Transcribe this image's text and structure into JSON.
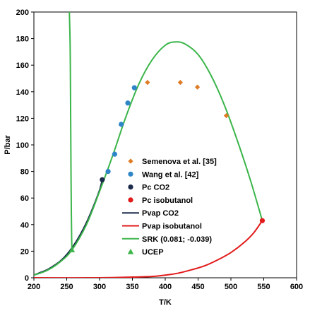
{
  "chart_data": {
    "type": "scatter",
    "title": "",
    "xlabel": "T/K",
    "ylabel": "P/bar",
    "xlim": [
      200,
      600
    ],
    "ylim": [
      0,
      200
    ],
    "x_ticks": [
      "200",
      "250",
      "300",
      "350",
      "400",
      "450",
      "500",
      "550",
      "600"
    ],
    "y_ticks": [
      "0",
      "20",
      "40",
      "60",
      "80",
      "100",
      "120",
      "140",
      "160",
      "180",
      "200"
    ],
    "grid": false,
    "legend_position": "right",
    "colors": {
      "semenova": "#e07b25",
      "wang": "#2e86c8",
      "pc_co2": "#1b2a4a",
      "pc_isobutanol": "#e21a1a",
      "pvap_co2": "#1b2a4a",
      "pvap_isobutanol": "#e21a1a",
      "srk": "#3bb54a",
      "ucep": "#3bb54a"
    },
    "series": [
      {
        "key": "semenova",
        "name": "Semenova et al. [35]",
        "kind": "marker",
        "marker": "diamond",
        "points": [
          [
            373,
            147
          ],
          [
            423,
            147
          ],
          [
            449,
            143.5
          ],
          [
            493,
            122
          ]
        ]
      },
      {
        "key": "wang",
        "name": "Wang et al. [42]",
        "kind": "marker",
        "marker": "circle",
        "points": [
          [
            313,
            80
          ],
          [
            323,
            93
          ],
          [
            333,
            115.5
          ],
          [
            343,
            131.5
          ],
          [
            353,
            143
          ]
        ]
      },
      {
        "key": "pc_co2",
        "name": "Pc CO2",
        "kind": "marker",
        "marker": "circle",
        "points": [
          [
            304.1,
            73.8
          ]
        ]
      },
      {
        "key": "pc_isobutanol",
        "name": "Pc isobutanol",
        "kind": "marker",
        "marker": "circle",
        "points": [
          [
            547.8,
            43
          ]
        ]
      },
      {
        "key": "pvap_co2",
        "name": "Pvap CO2",
        "kind": "line",
        "points": [
          [
            200,
            2
          ],
          [
            210,
            4
          ],
          [
            220,
            6
          ],
          [
            230,
            9
          ],
          [
            240,
            12.5
          ],
          [
            250,
            17.5
          ],
          [
            260,
            24
          ],
          [
            270,
            32
          ],
          [
            280,
            41.5
          ],
          [
            290,
            53
          ],
          [
            300,
            66
          ],
          [
            304.1,
            73.8
          ]
        ]
      },
      {
        "key": "pvap_isobutanol",
        "name": "Pvap isobutanol",
        "kind": "line",
        "points": [
          [
            200,
            0
          ],
          [
            300,
            0
          ],
          [
            350,
            0.5
          ],
          [
            380,
            1
          ],
          [
            400,
            2
          ],
          [
            420,
            3.5
          ],
          [
            440,
            6
          ],
          [
            460,
            9
          ],
          [
            480,
            13.5
          ],
          [
            500,
            19
          ],
          [
            520,
            26.5
          ],
          [
            535,
            34
          ],
          [
            547.8,
            43
          ]
        ]
      },
      {
        "key": "srk_left",
        "name": "SRK (0.081; -0.039)",
        "kind": "line",
        "points": [
          [
            254,
            200
          ],
          [
            255,
            180
          ],
          [
            255.5,
            160
          ],
          [
            256,
            120
          ],
          [
            256.5,
            80
          ],
          [
            257,
            50
          ],
          [
            257.5,
            30
          ],
          [
            258,
            21
          ]
        ]
      },
      {
        "key": "srk_main",
        "name": "",
        "kind": "line",
        "points": [
          [
            200,
            2
          ],
          [
            220,
            5.5
          ],
          [
            240,
            12
          ],
          [
            258,
            21
          ],
          [
            280,
            40
          ],
          [
            300,
            65
          ],
          [
            320,
            92
          ],
          [
            340,
            121
          ],
          [
            360,
            146
          ],
          [
            380,
            164
          ],
          [
            400,
            175
          ],
          [
            415,
            177.5
          ],
          [
            430,
            176
          ],
          [
            450,
            168
          ],
          [
            470,
            152
          ],
          [
            490,
            130
          ],
          [
            510,
            103
          ],
          [
            530,
            73
          ],
          [
            547.8,
            43
          ]
        ]
      },
      {
        "key": "ucep",
        "name": "UCEP",
        "kind": "marker",
        "marker": "triangle",
        "points": [
          [
            258,
            21
          ]
        ]
      }
    ],
    "legend": [
      {
        "key": "semenova",
        "label": "Semenova et al. [35]",
        "marker": "diamond"
      },
      {
        "key": "wang",
        "label": "Wang et al. [42]",
        "marker": "circle"
      },
      {
        "key": "pc_co2",
        "label": "Pc CO2",
        "marker": "circle"
      },
      {
        "key": "pc_isobutanol",
        "label": "Pc isobutanol",
        "marker": "circle"
      },
      {
        "key": "pvap_co2",
        "label": "Pvap CO2",
        "marker": "line"
      },
      {
        "key": "pvap_isobutanol",
        "label": "Pvap isobutanol",
        "marker": "line"
      },
      {
        "key": "srk",
        "label": "SRK (0.081; -0.039)",
        "marker": "line"
      },
      {
        "key": "ucep",
        "label": "UCEP",
        "marker": "triangle"
      }
    ]
  }
}
